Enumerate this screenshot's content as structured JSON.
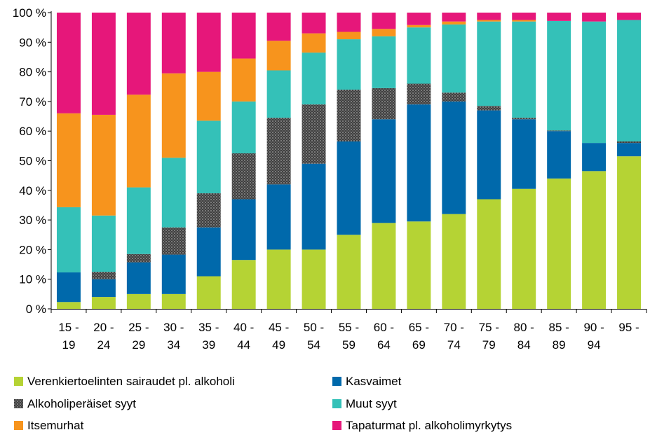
{
  "chart_data": {
    "type": "bar",
    "stacked": true,
    "percent": true,
    "title": "",
    "xlabel": "",
    "ylabel": "",
    "ylim": [
      0,
      100
    ],
    "y_ticks": [
      "0 %",
      "10 %",
      "20 %",
      "30 %",
      "40 %",
      "50 %",
      "60 %",
      "70 %",
      "80 %",
      "90 %",
      "100 %"
    ],
    "grid": false,
    "legend_position": "bottom",
    "categories": [
      [
        "15 -",
        "19"
      ],
      [
        "20 -",
        "24"
      ],
      [
        "25 -",
        "29"
      ],
      [
        "30 -",
        "34"
      ],
      [
        "35 -",
        "39"
      ],
      [
        "40 -",
        "44"
      ],
      [
        "45 -",
        "49"
      ],
      [
        "50 -",
        "54"
      ],
      [
        "55 -",
        "59"
      ],
      [
        "60 -",
        "64"
      ],
      [
        "65 -",
        "69"
      ],
      [
        "70 -",
        "74"
      ],
      [
        "75 -",
        "79"
      ],
      [
        "80 -",
        "84"
      ],
      [
        "85 -",
        "89"
      ],
      [
        "90 -",
        "94"
      ],
      [
        "95 -",
        ""
      ]
    ],
    "series": [
      {
        "name": "Verenkiertoelinten sairaudet pl. alkoholi",
        "color": "#b5d334",
        "pattern": false,
        "values": [
          2.3,
          4.0,
          5.0,
          5.0,
          11.0,
          16.5,
          20.0,
          20.0,
          25.0,
          29.0,
          29.5,
          32.0,
          37.0,
          40.5,
          44.0,
          46.5,
          51.5
        ]
      },
      {
        "name": "Kasvaimet",
        "color": "#0069ab",
        "pattern": false,
        "values": [
          10.0,
          6.0,
          10.7,
          13.3,
          16.5,
          20.5,
          22.0,
          29.0,
          31.5,
          35.0,
          39.5,
          38.0,
          30.0,
          23.5,
          16.0,
          9.5,
          4.5
        ]
      },
      {
        "name": "Alkoholiperäiset syyt",
        "color": "#3f3f3f",
        "pattern": true,
        "values": [
          0.0,
          2.5,
          2.8,
          9.2,
          11.5,
          15.5,
          22.5,
          20.0,
          17.5,
          10.5,
          7.0,
          3.0,
          1.5,
          0.5,
          0.2,
          0.0,
          0.5
        ]
      },
      {
        "name": "Muut syyt",
        "color": "#34c1b8",
        "pattern": false,
        "values": [
          22.0,
          19.0,
          22.5,
          23.5,
          24.5,
          17.5,
          16.0,
          17.5,
          17.0,
          17.5,
          19.0,
          23.0,
          28.5,
          32.5,
          37.0,
          41.0,
          41.0
        ]
      },
      {
        "name": "Itsemurhat",
        "color": "#f7941d",
        "pattern": false,
        "values": [
          31.7,
          34.0,
          31.3,
          28.5,
          16.5,
          14.5,
          10.0,
          6.5,
          2.5,
          2.5,
          0.8,
          1.0,
          0.5,
          0.5,
          0.0,
          0.0,
          0.0
        ]
      },
      {
        "name": "Tapaturmat pl. alkoholimyrkytys",
        "color": "#e6177a",
        "pattern": false,
        "values": [
          34.0,
          34.5,
          27.7,
          20.5,
          20.0,
          15.5,
          9.5,
          7.0,
          6.5,
          5.5,
          4.2,
          3.0,
          2.5,
          2.5,
          2.8,
          3.0,
          2.5
        ]
      }
    ]
  }
}
